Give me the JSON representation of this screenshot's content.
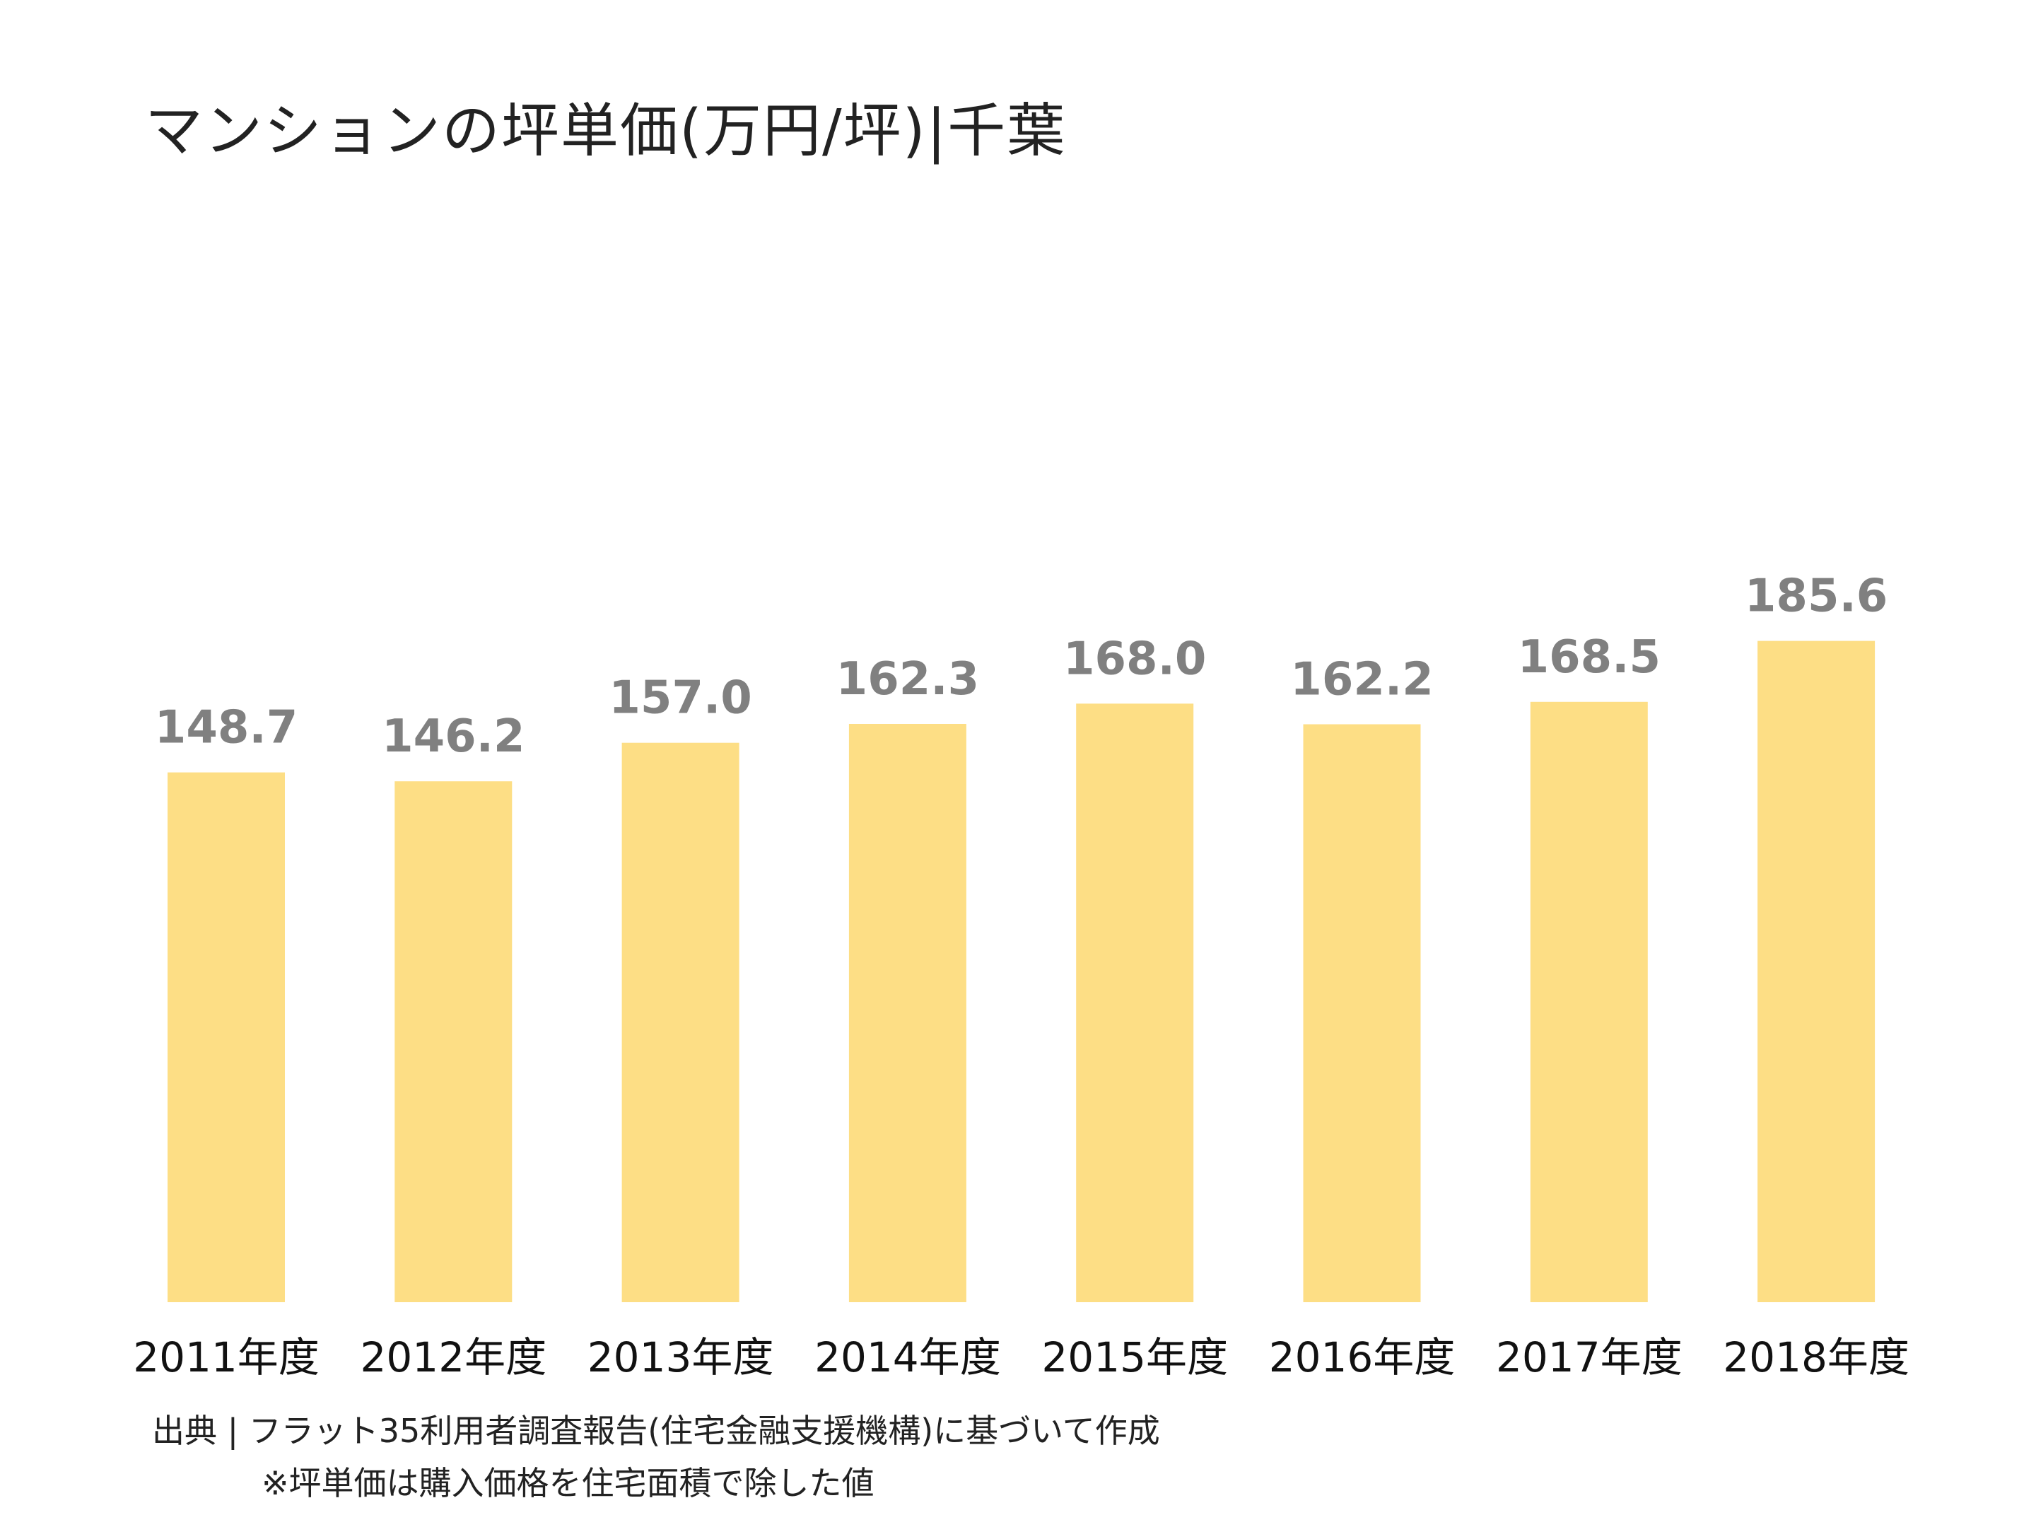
{
  "chart_data": {
    "type": "bar",
    "title": "マンションの坪単価(万円/坪)|千葉",
    "categories": [
      "2011年度",
      "2012年度",
      "2013年度",
      "2014年度",
      "2015年度",
      "2016年度",
      "2017年度",
      "2018年度"
    ],
    "values": [
      148.7,
      146.2,
      157.0,
      162.3,
      168.0,
      162.2,
      168.5,
      185.6
    ],
    "value_labels": [
      "148.7",
      "146.2",
      "157.0",
      "162.3",
      "168.0",
      "162.2",
      "168.5",
      "185.6"
    ],
    "ylim": [
      0,
      195
    ],
    "xlabel": "",
    "ylabel": "",
    "grid": false,
    "legend": "none",
    "bar_color": "#FDDE85",
    "label_color": "#808080"
  },
  "notes": {
    "source": "出典 | フラット35利用者調査報告(住宅金融支援機構)に基づいて作成",
    "footnote": "※坪単価は購入価格を住宅面積で除した値"
  }
}
